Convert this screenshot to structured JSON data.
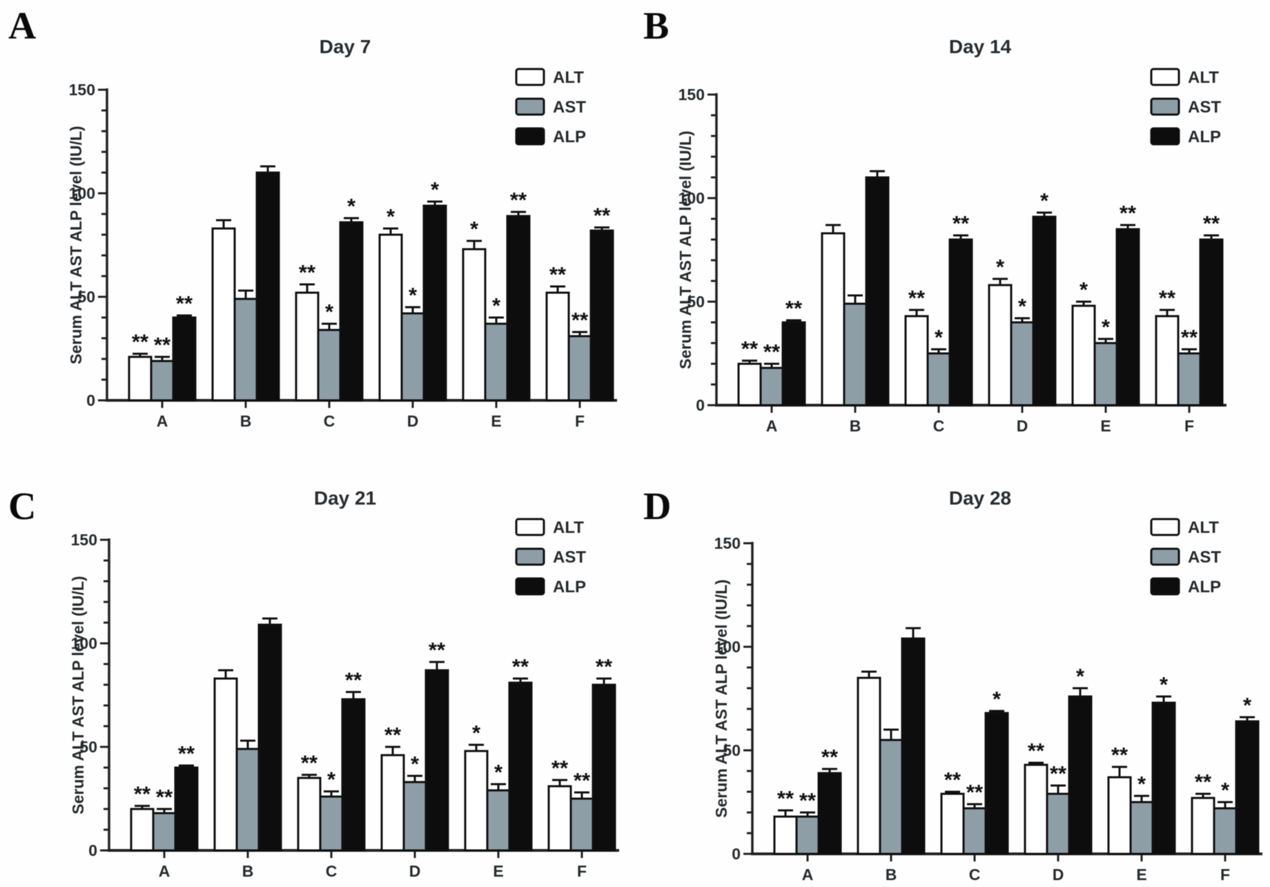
{
  "figure": {
    "background": "#ffffff",
    "layout": "2x2-panel-grid",
    "panel_letters": [
      "A",
      "B",
      "C",
      "D"
    ]
  },
  "colors": {
    "alt_bar": "#ffffff",
    "ast_bar": "#8e9ea7",
    "alp_bar": "#0d0d0d",
    "axis": "#222222",
    "text": "#24292c",
    "bar_outline": "#101010"
  },
  "chart_data": [
    {
      "panel_letter": "A",
      "type": "bar",
      "title": "Day 7",
      "xlabel": "",
      "ylabel": "Serum ALT AST ALP level (IU/L)",
      "units": "IU/L",
      "categories": [
        "A",
        "B",
        "C",
        "D",
        "E",
        "F"
      ],
      "ylim": [
        0,
        150
      ],
      "yticks": [
        0,
        50,
        100,
        150
      ],
      "minor_tick_step": 10,
      "grid": false,
      "legend_position": "top-right",
      "legend": [
        "ALT",
        "AST",
        "ALP"
      ],
      "series": [
        {
          "name": "ALT",
          "fill": "#ffffff",
          "values": [
            21,
            83,
            52,
            80,
            73,
            52
          ],
          "errors": [
            1.5,
            4,
            4,
            3,
            4,
            3
          ],
          "significance": [
            "**",
            "",
            "**",
            "*",
            "*",
            "**"
          ]
        },
        {
          "name": "AST",
          "fill": "#8e9ea7",
          "values": [
            19,
            49,
            34,
            42,
            37,
            31
          ],
          "errors": [
            2,
            4,
            3,
            3,
            3,
            2
          ],
          "significance": [
            "**",
            "",
            "*",
            "*",
            "*",
            "**"
          ]
        },
        {
          "name": "ALP",
          "fill": "#0d0d0d",
          "values": [
            40,
            110,
            86,
            94,
            89,
            82
          ],
          "errors": [
            1,
            3,
            2,
            2,
            2,
            1.5
          ],
          "significance": [
            "**",
            "",
            "*",
            "*",
            "**",
            "**"
          ]
        }
      ]
    },
    {
      "panel_letter": "B",
      "type": "bar",
      "title": "Day 14",
      "xlabel": "",
      "ylabel": "Serum ALT AST ALP level (IU/L)",
      "units": "IU/L",
      "categories": [
        "A",
        "B",
        "C",
        "D",
        "E",
        "F"
      ],
      "ylim": [
        0,
        150
      ],
      "yticks": [
        0,
        50,
        100,
        150
      ],
      "minor_tick_step": 10,
      "grid": false,
      "legend_position": "top-right",
      "legend": [
        "ALT",
        "AST",
        "ALP"
      ],
      "series": [
        {
          "name": "ALT",
          "fill": "#ffffff",
          "values": [
            20,
            83,
            43,
            58,
            48,
            43
          ],
          "errors": [
            1.5,
            4,
            3,
            3,
            2,
            3
          ],
          "significance": [
            "**",
            "",
            "**",
            "*",
            "*",
            "**"
          ]
        },
        {
          "name": "AST",
          "fill": "#8e9ea7",
          "values": [
            18,
            49,
            25,
            40,
            30,
            25
          ],
          "errors": [
            2,
            4,
            2,
            2,
            2,
            2
          ],
          "significance": [
            "**",
            "",
            "*",
            "*",
            "*",
            "**"
          ]
        },
        {
          "name": "ALP",
          "fill": "#0d0d0d",
          "values": [
            40,
            110,
            80,
            91,
            85,
            80
          ],
          "errors": [
            1,
            3,
            2,
            2,
            2,
            2
          ],
          "significance": [
            "**",
            "",
            "**",
            "*",
            "**",
            "**"
          ]
        }
      ]
    },
    {
      "panel_letter": "C",
      "type": "bar",
      "title": "Day 21",
      "xlabel": "",
      "ylabel": "Serum ALT AST ALP level (IU/L)",
      "units": "IU/L",
      "categories": [
        "A",
        "B",
        "C",
        "D",
        "E",
        "F"
      ],
      "ylim": [
        0,
        150
      ],
      "yticks": [
        0,
        50,
        100,
        150
      ],
      "minor_tick_step": 10,
      "grid": false,
      "legend_position": "top-right",
      "legend": [
        "ALT",
        "AST",
        "ALP"
      ],
      "series": [
        {
          "name": "ALT",
          "fill": "#ffffff",
          "values": [
            20,
            83,
            35,
            46,
            48,
            31
          ],
          "errors": [
            1.5,
            4,
            1.5,
            4,
            3,
            3
          ],
          "significance": [
            "**",
            "",
            "**",
            "**",
            "*",
            "**"
          ]
        },
        {
          "name": "AST",
          "fill": "#8e9ea7",
          "values": [
            18,
            49,
            26,
            33,
            29,
            25
          ],
          "errors": [
            2,
            4,
            2.5,
            3,
            3,
            3
          ],
          "significance": [
            "**",
            "",
            "*",
            "*",
            "*",
            "**"
          ]
        },
        {
          "name": "ALP",
          "fill": "#0d0d0d",
          "values": [
            40,
            109,
            73,
            87,
            81,
            80
          ],
          "errors": [
            1,
            3,
            3.5,
            4,
            2,
            3
          ],
          "significance": [
            "**",
            "",
            "**",
            "**",
            "**",
            "**"
          ]
        }
      ]
    },
    {
      "panel_letter": "D",
      "type": "bar",
      "title": "Day 28",
      "xlabel": "",
      "ylabel": "Serum ALT AST ALP level (IU/L)",
      "units": "IU/L",
      "categories": [
        "A",
        "B",
        "C",
        "D",
        "E",
        "F"
      ],
      "ylim": [
        0,
        150
      ],
      "yticks": [
        0,
        50,
        100,
        150
      ],
      "minor_tick_step": 10,
      "grid": false,
      "legend_position": "top-right",
      "legend": [
        "ALT",
        "AST",
        "ALP"
      ],
      "series": [
        {
          "name": "ALT",
          "fill": "#ffffff",
          "values": [
            18,
            85,
            29,
            43,
            37,
            27
          ],
          "errors": [
            3,
            3,
            1,
            1,
            5,
            2
          ],
          "significance": [
            "**",
            "",
            "**",
            "**",
            "**",
            "**"
          ]
        },
        {
          "name": "AST",
          "fill": "#8e9ea7",
          "values": [
            18,
            55,
            22,
            29,
            25,
            22
          ],
          "errors": [
            2,
            5,
            2,
            4,
            3,
            3
          ],
          "significance": [
            "**",
            "",
            "**",
            "**",
            "*",
            "*"
          ]
        },
        {
          "name": "ALP",
          "fill": "#0d0d0d",
          "values": [
            39,
            104,
            68,
            76,
            73,
            64
          ],
          "errors": [
            2,
            5,
            1,
            4,
            3,
            2
          ],
          "significance": [
            "**",
            "",
            "*",
            "*",
            "*",
            "*"
          ]
        }
      ]
    }
  ]
}
